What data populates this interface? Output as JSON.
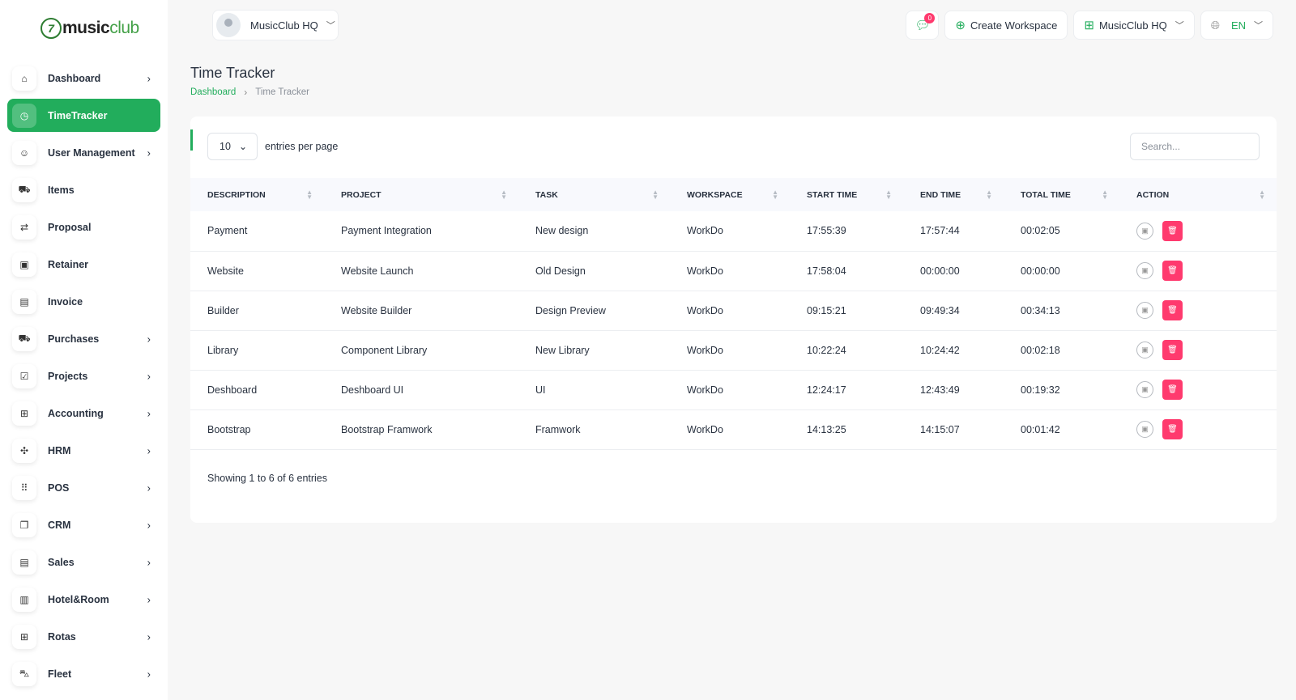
{
  "brand": {
    "logo_mark": "7",
    "name_a": "music",
    "name_b": "club"
  },
  "sidebar": {
    "items": [
      {
        "label": "Dashboard",
        "icon": "home-icon",
        "glyph": "⌂",
        "chevron": true,
        "active": false
      },
      {
        "label": "TimeTracker",
        "icon": "clock-icon",
        "glyph": "◷",
        "chevron": false,
        "active": true
      },
      {
        "label": "User Management",
        "icon": "users-icon",
        "glyph": "☺",
        "chevron": true,
        "active": false
      },
      {
        "label": "Items",
        "icon": "cart-icon",
        "glyph": "⛟",
        "chevron": false,
        "active": false
      },
      {
        "label": "Proposal",
        "icon": "proposal-icon",
        "glyph": "⇄",
        "chevron": false,
        "active": false
      },
      {
        "label": "Retainer",
        "icon": "retainer-icon",
        "glyph": "▣",
        "chevron": false,
        "active": false
      },
      {
        "label": "Invoice",
        "icon": "invoice-icon",
        "glyph": "▤",
        "chevron": false,
        "active": false
      },
      {
        "label": "Purchases",
        "icon": "purchases-icon",
        "glyph": "⛟",
        "chevron": true,
        "active": false
      },
      {
        "label": "Projects",
        "icon": "projects-icon",
        "glyph": "☑",
        "chevron": true,
        "active": false
      },
      {
        "label": "Accounting",
        "icon": "accounting-icon",
        "glyph": "⊞",
        "chevron": true,
        "active": false
      },
      {
        "label": "HRM",
        "icon": "hrm-icon",
        "glyph": "✣",
        "chevron": true,
        "active": false
      },
      {
        "label": "POS",
        "icon": "pos-icon",
        "glyph": "⠿",
        "chevron": true,
        "active": false
      },
      {
        "label": "CRM",
        "icon": "crm-icon",
        "glyph": "❐",
        "chevron": true,
        "active": false
      },
      {
        "label": "Sales",
        "icon": "sales-icon",
        "glyph": "▤",
        "chevron": true,
        "active": false
      },
      {
        "label": "Hotel&Room",
        "icon": "hotel-icon",
        "glyph": "▥",
        "chevron": true,
        "active": false
      },
      {
        "label": "Rotas",
        "icon": "rotas-icon",
        "glyph": "⊞",
        "chevron": true,
        "active": false
      },
      {
        "label": "Fleet",
        "icon": "fleet-icon",
        "glyph": "⛍",
        "chevron": true,
        "active": false
      }
    ]
  },
  "header": {
    "workspace_switcher": "MusicClub HQ",
    "notification_count": "0",
    "create_workspace": "Create Workspace",
    "workspace_menu": "MusicClub HQ",
    "language": "EN"
  },
  "page": {
    "title": "Time Tracker",
    "breadcrumb_home": "Dashboard",
    "breadcrumb_current": "Time Tracker"
  },
  "table": {
    "per_page": "10",
    "per_page_label": "entries per page",
    "search_placeholder": "Search...",
    "columns": [
      "DESCRIPTION",
      "PROJECT",
      "TASK",
      "WORKSPACE",
      "START TIME",
      "END TIME",
      "TOTAL TIME",
      "ACTION"
    ],
    "rows": [
      [
        "Payment",
        "Payment Integration",
        "New design",
        "WorkDo",
        "17:55:39",
        "17:57:44",
        "00:02:05"
      ],
      [
        "Website",
        "Website Launch",
        "Old Design",
        "WorkDo",
        "17:58:04",
        "00:00:00",
        "00:00:00"
      ],
      [
        "Builder",
        "Website Builder",
        "Design Preview",
        "WorkDo",
        "09:15:21",
        "09:49:34",
        "00:34:13"
      ],
      [
        "Library",
        "Component Library",
        "New Library",
        "WorkDo",
        "10:22:24",
        "10:24:42",
        "00:02:18"
      ],
      [
        "Deshboard",
        "Deshboard UI",
        "UI",
        "WorkDo",
        "12:24:17",
        "12:43:49",
        "00:19:32"
      ],
      [
        "Bootstrap",
        "Bootstrap Framwork",
        "Framwork",
        "WorkDo",
        "14:13:25",
        "14:15:07",
        "00:01:42"
      ]
    ],
    "footer": "Showing 1 to 6 of 6 entries"
  },
  "colors": {
    "accent": "#22ad5c",
    "danger": "#ff3a6e",
    "text": "#293240"
  }
}
